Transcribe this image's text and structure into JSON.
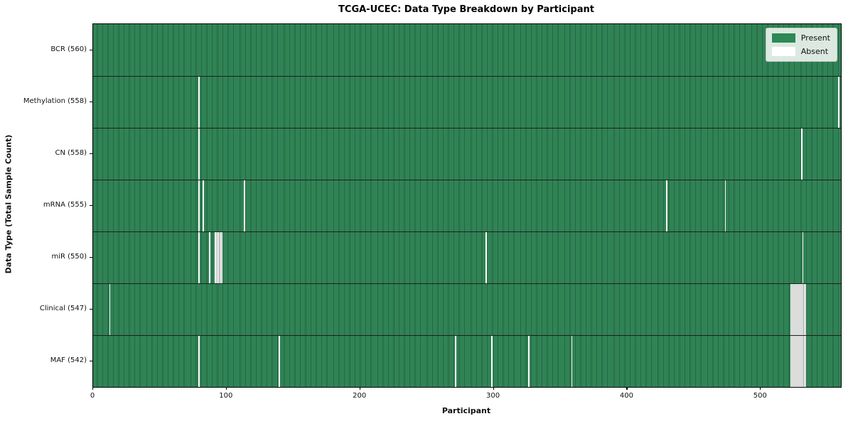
{
  "figure": {
    "title": "TCGA-UCEC: Data Type Breakdown by Participant",
    "xlabel": "Participant",
    "ylabel": "Data Type (Total Sample Count)"
  },
  "chart_data": {
    "type": "heatmap",
    "title": "TCGA-UCEC: Data Type Breakdown by Participant",
    "xlabel": "Participant",
    "ylabel": "Data Type (Total Sample Count)",
    "n_participants": 560,
    "x_ticks": [
      0,
      100,
      200,
      300,
      400,
      500
    ],
    "xlim": [
      0,
      560
    ],
    "grid": false,
    "legend_position": "upper right",
    "rows": [
      {
        "label": "BCR (560)",
        "present_count": 560,
        "absent_participants": []
      },
      {
        "label": "Methylation (558)",
        "present_count": 558,
        "absent_participants": [
          79,
          558
        ]
      },
      {
        "label": "CN (558)",
        "present_count": 558,
        "absent_participants": [
          79,
          530
        ]
      },
      {
        "label": "mRNA (555)",
        "present_count": 555,
        "absent_participants": [
          79,
          82,
          113,
          429,
          473
        ]
      },
      {
        "label": "miR (550)",
        "present_count": 550,
        "absent_participants": [
          79,
          87,
          91,
          92,
          93,
          94,
          95,
          96,
          294,
          531
        ]
      },
      {
        "label": "Clinical (547)",
        "present_count": 547,
        "absent_participants": [
          12,
          522,
          523,
          524,
          525,
          526,
          527,
          528,
          529,
          530,
          531,
          532,
          533
        ]
      },
      {
        "label": "MAF (542)",
        "present_count": 542,
        "absent_participants": [
          79,
          139,
          271,
          298,
          326,
          358,
          522,
          523,
          524,
          525,
          526,
          527,
          528,
          529,
          530,
          531,
          532,
          533
        ]
      }
    ],
    "legend": [
      {
        "label": "Present",
        "color": "#2e8857"
      },
      {
        "label": "Absent",
        "color": "#ffffff"
      }
    ],
    "colors": {
      "present_body": "#36905f",
      "present_edge": "#1d5c3a",
      "absent_body": "#fefefe",
      "absent_edge": "#b7bbb7",
      "row_separator": "#1f1f1f",
      "frame": "#000000"
    }
  }
}
